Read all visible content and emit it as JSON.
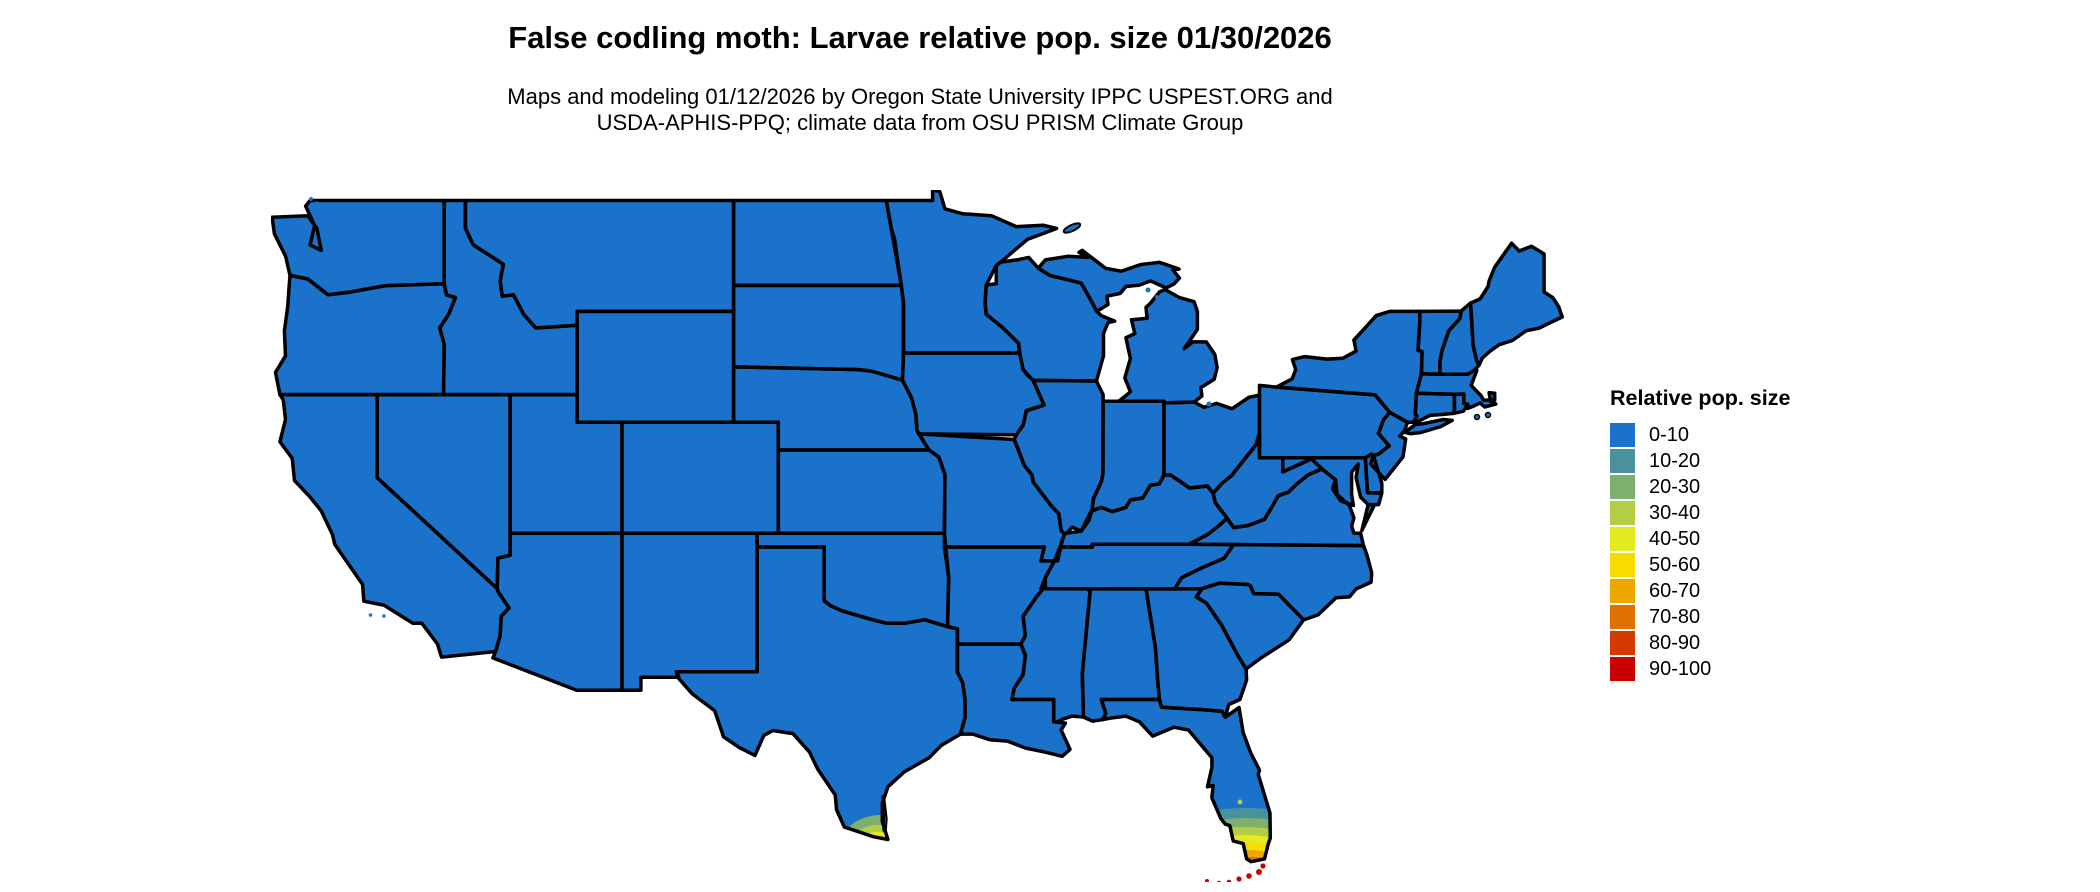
{
  "header": {
    "title": "False codling moth: Larvae relative pop. size 01/30/2026",
    "subtitle_line1": "Maps and modeling 01/12/2026 by Oregon State University IPPC USPEST.ORG and",
    "subtitle_line2": "USDA-APHIS-PPQ; climate data from OSU PRISM Climate Group"
  },
  "legend": {
    "title": "Relative pop. size",
    "items": [
      {
        "label": "0-10",
        "color": "#1B72CA"
      },
      {
        "label": "10-20",
        "color": "#4A919E"
      },
      {
        "label": "20-30",
        "color": "#7DB06F"
      },
      {
        "label": "30-40",
        "color": "#B3CE45"
      },
      {
        "label": "40-50",
        "color": "#E3EA1D"
      },
      {
        "label": "50-60",
        "color": "#F8DC00"
      },
      {
        "label": "60-70",
        "color": "#EDA800"
      },
      {
        "label": "70-80",
        "color": "#E07100"
      },
      {
        "label": "80-90",
        "color": "#D43A00"
      },
      {
        "label": "90-100",
        "color": "#C80000"
      }
    ]
  },
  "map": {
    "base_fill": "#1B72CA",
    "border_color": "#000000",
    "background": "#FFFFFF",
    "base_value": "0-10 over nearly all of the contiguous United States",
    "hotspots": [
      {
        "region": "South Florida peninsula",
        "values": "10-90, increasing from about Lake Okeechobee latitude toward the southern tip"
      },
      {
        "region": "Florida Keys",
        "values": "90-100"
      },
      {
        "region": "Rio Grande Valley, South Texas",
        "values": "20-70, small patch at the southern tip of Texas"
      }
    ]
  }
}
